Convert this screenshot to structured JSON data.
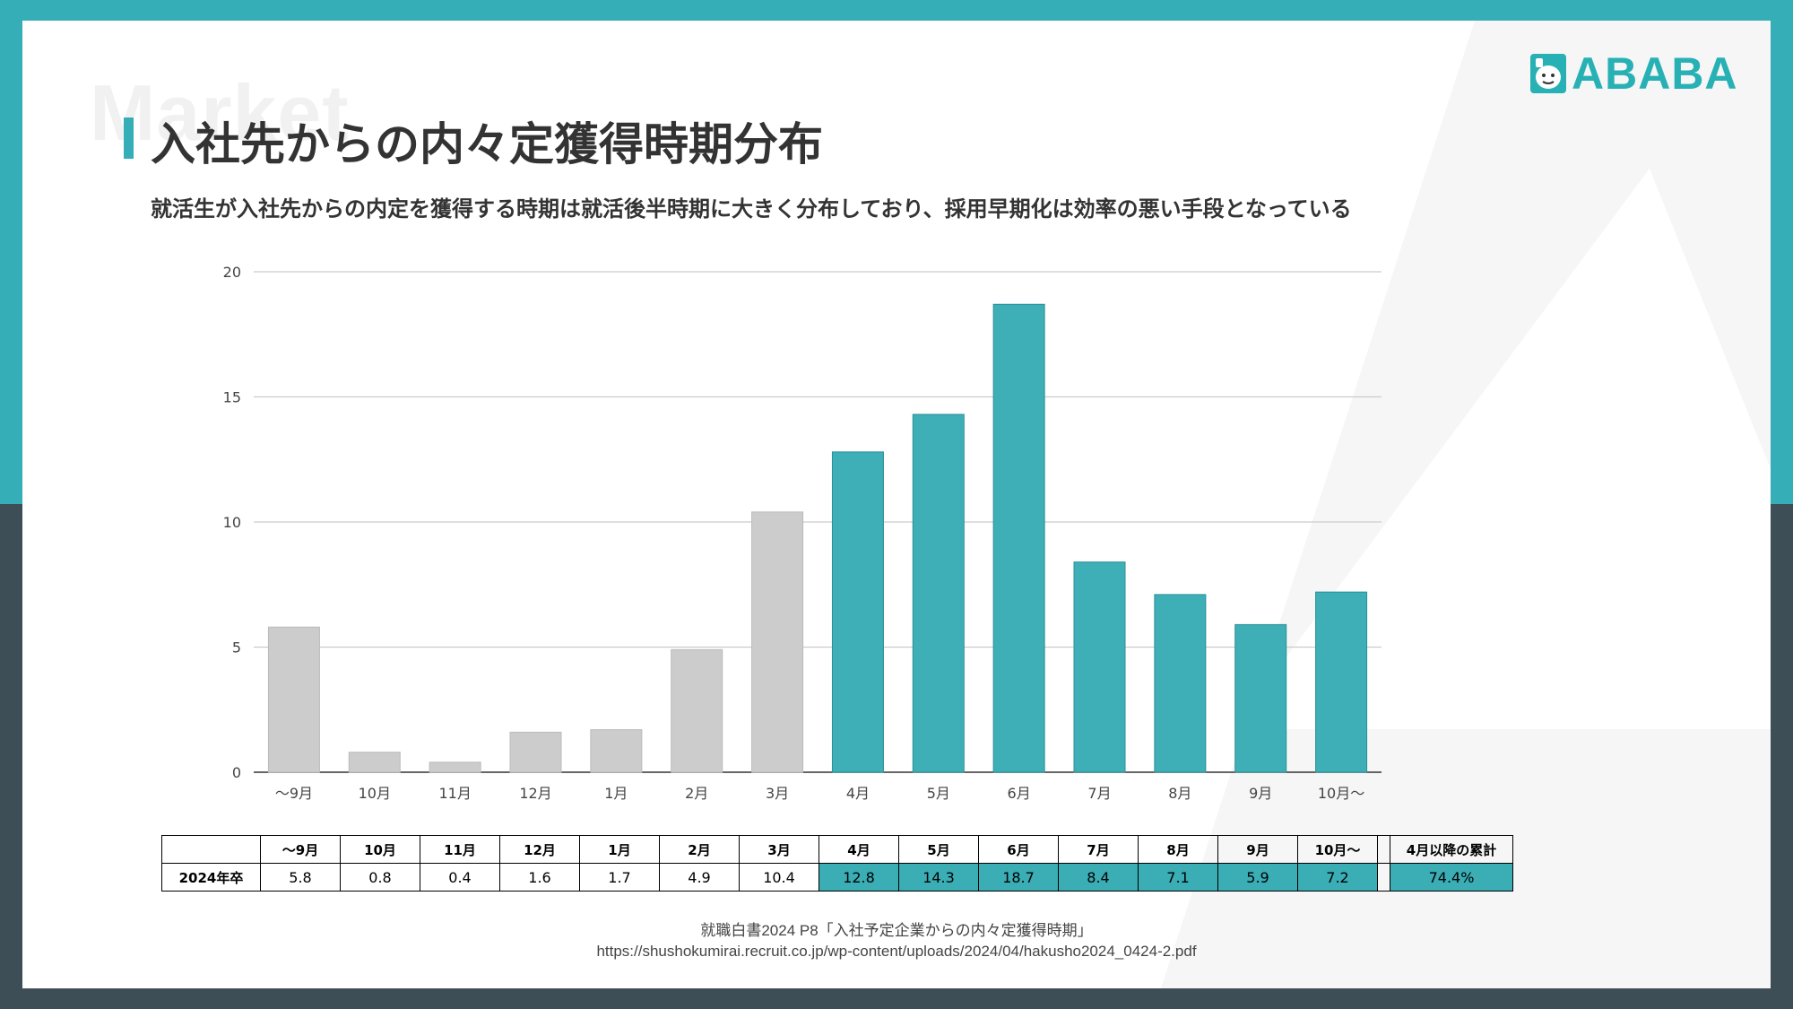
{
  "header": {
    "watermark": "Market",
    "title": "入社先からの内々定獲得時期分布",
    "subtitle": "就活生が入社先からの内定を獲得する時期は就活後半時期に大きく分布しており、採用早期化は効率の悪い手段となっている",
    "logo_text": "ABABA"
  },
  "colors": {
    "accent": "#35aeb7",
    "bar_highlight": "#3eafb6",
    "bar_muted": "#cccccc",
    "bottom_band": "#3e4e56"
  },
  "chart_data": {
    "type": "bar",
    "categories": [
      "〜9月",
      "10月",
      "11月",
      "12月",
      "1月",
      "2月",
      "3月",
      "4月",
      "5月",
      "6月",
      "7月",
      "8月",
      "9月",
      "10月〜"
    ],
    "values": [
      5.8,
      0.8,
      0.4,
      1.6,
      1.7,
      4.9,
      10.4,
      12.8,
      14.3,
      18.7,
      8.4,
      7.1,
      5.9,
      7.2
    ],
    "highlight": [
      false,
      false,
      false,
      false,
      false,
      false,
      false,
      true,
      true,
      true,
      true,
      true,
      true,
      true
    ],
    "ylim": [
      0,
      20
    ],
    "yticks": [
      0,
      5,
      10,
      15,
      20
    ],
    "title": "",
    "xlabel": "",
    "ylabel": "",
    "grid": true
  },
  "table": {
    "headers": [
      "〜9月",
      "10月",
      "11月",
      "12月",
      "1月",
      "2月",
      "3月",
      "4月",
      "5月",
      "6月",
      "7月",
      "8月",
      "9月",
      "10月〜"
    ],
    "row_label": "2024年卒",
    "values": [
      "5.8",
      "0.8",
      "0.4",
      "1.6",
      "1.7",
      "4.9",
      "10.4",
      "12.8",
      "14.3",
      "18.7",
      "8.4",
      "7.1",
      "5.9",
      "7.2"
    ],
    "cumulative_header": "4月以降の累計",
    "cumulative_value": "74.4%"
  },
  "source": {
    "line1": "就職白書2024 P8「入社予定企業からの内々定獲得時期」",
    "line2": "https://shushokumirai.recruit.co.jp/wp-content/uploads/2024/04/hakusho2024_0424-2.pdf"
  }
}
